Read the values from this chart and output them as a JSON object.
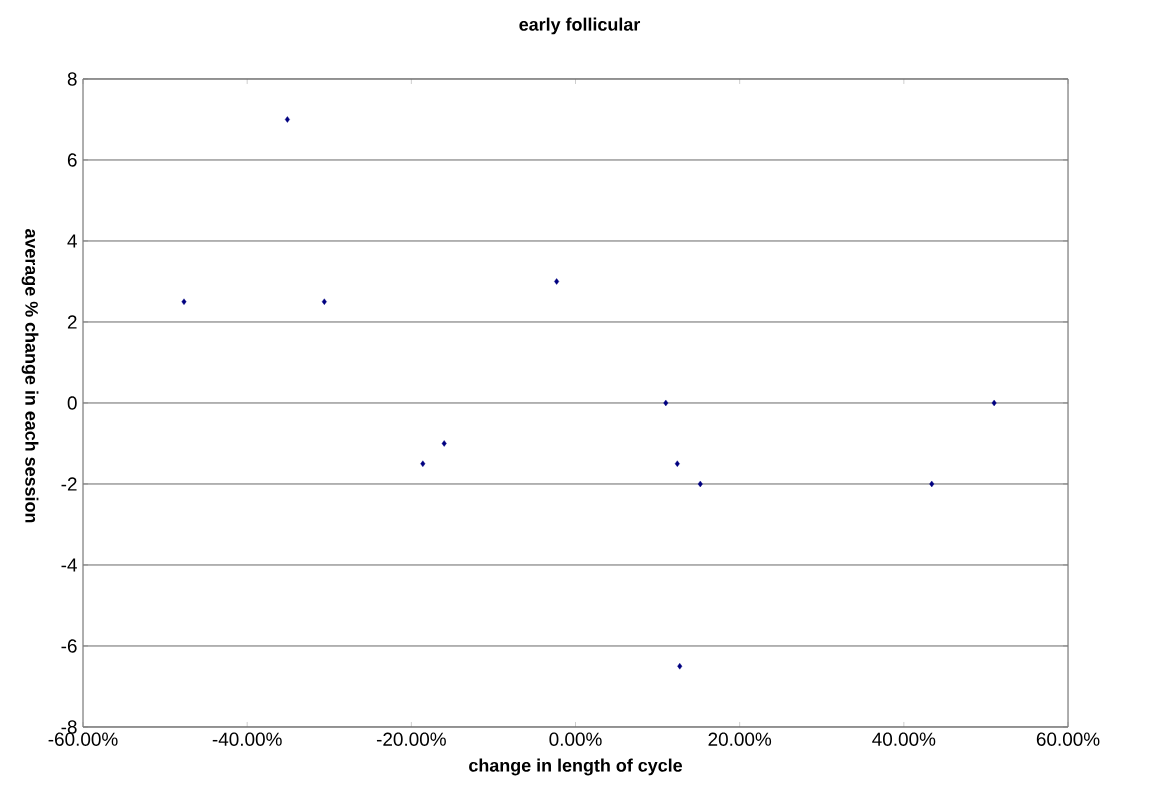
{
  "chart_data": {
    "type": "scatter",
    "title": "early follicular",
    "xlabel": "change in length of cycle",
    "ylabel": "average % change in each session",
    "x": [
      -47.7,
      -35.1,
      -30.6,
      -2.3,
      -18.6,
      -16.0,
      11.0,
      12.4,
      15.2,
      12.7,
      43.4,
      51.0
    ],
    "values": [
      2.5,
      7.0,
      2.5,
      3.0,
      -1.5,
      -1.0,
      0,
      -1.5,
      -2,
      -6.5,
      -2,
      0
    ],
    "color": "#000080",
    "marker": "diamond",
    "grid": "y",
    "xlim": [
      -60,
      60
    ],
    "xticks": [
      {
        "value": -60,
        "label": "-60.00%"
      },
      {
        "value": -40,
        "label": "-40.00%"
      },
      {
        "value": -20,
        "label": "-20.00%"
      },
      {
        "value": 0,
        "label": "0.00%"
      },
      {
        "value": 20,
        "label": "20.00%"
      },
      {
        "value": 40,
        "label": "40.00%"
      },
      {
        "value": 60,
        "label": "60.00%"
      }
    ],
    "ylim": [
      -8,
      8
    ],
    "yticks": [
      -8,
      -6,
      -4,
      -2,
      0,
      2,
      4,
      6,
      8
    ]
  }
}
